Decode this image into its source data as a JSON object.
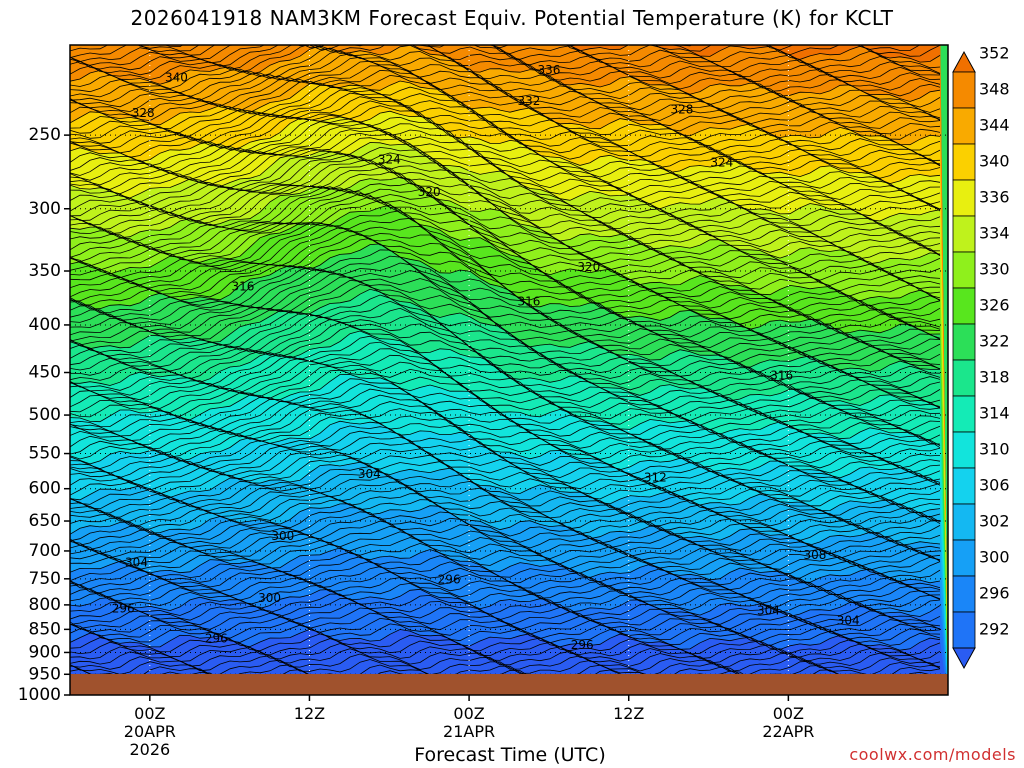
{
  "chart_data": {
    "type": "heatmap",
    "title": "2026041918 NAM3KM Forecast Equiv. Potential Temperature (K) for KCLT",
    "xlabel": "Forecast Time (UTC)",
    "ylabel": "",
    "y_scale": "log (pressure, reversed)",
    "ylim": [
      1000,
      200
    ],
    "y_ticks": [
      250,
      300,
      350,
      400,
      450,
      500,
      550,
      600,
      650,
      700,
      750,
      800,
      850,
      900,
      950,
      1000
    ],
    "x_range_hours": [
      -6,
      60
    ],
    "x_ticks": [
      {
        "hour": 0,
        "lines": [
          "00Z",
          "20APR",
          "2026"
        ]
      },
      {
        "hour": 12,
        "lines": [
          "12Z"
        ]
      },
      {
        "hour": 24,
        "lines": [
          "00Z",
          "21APR"
        ]
      },
      {
        "hour": 36,
        "lines": [
          "12Z"
        ]
      },
      {
        "hour": 48,
        "lines": [
          "00Z",
          "22APR"
        ]
      }
    ],
    "grid": true,
    "colorbar": {
      "levels": [
        292,
        296,
        300,
        302,
        306,
        310,
        314,
        318,
        322,
        326,
        330,
        334,
        336,
        340,
        344,
        348,
        352
      ],
      "colors": [
        "#2a5cf2",
        "#1f74f7",
        "#1a86f8",
        "#16a0f6",
        "#14b8f2",
        "#14d2ee",
        "#12e4dc",
        "#14ebb6",
        "#1be68c",
        "#2cdf58",
        "#58e61e",
        "#8ff01c",
        "#bff21c",
        "#e8ef10",
        "#fbd000",
        "#f9aa00",
        "#f58a00",
        "#f07000"
      ]
    },
    "contour_labels": [
      {
        "hour": 2,
        "p": 217,
        "text": "340"
      },
      {
        "hour": -0.5,
        "p": 237,
        "text": "328"
      },
      {
        "hour": 30,
        "p": 213,
        "text": "336"
      },
      {
        "hour": 28.5,
        "p": 230,
        "text": "332"
      },
      {
        "hour": 40,
        "p": 235,
        "text": "328"
      },
      {
        "hour": 18,
        "p": 266,
        "text": "324"
      },
      {
        "hour": 43,
        "p": 268,
        "text": "324"
      },
      {
        "hour": 21,
        "p": 288,
        "text": "320"
      },
      {
        "hour": 7,
        "p": 364,
        "text": "316"
      },
      {
        "hour": 33,
        "p": 347,
        "text": "320"
      },
      {
        "hour": 28.5,
        "p": 378,
        "text": "316"
      },
      {
        "hour": 47.5,
        "p": 454,
        "text": "316"
      },
      {
        "hour": 16.5,
        "p": 579,
        "text": "304"
      },
      {
        "hour": 38,
        "p": 584,
        "text": "312"
      },
      {
        "hour": 10,
        "p": 675,
        "text": "300"
      },
      {
        "hour": 50,
        "p": 708,
        "text": "308"
      },
      {
        "hour": -1,
        "p": 721,
        "text": "304"
      },
      {
        "hour": 22.5,
        "p": 752,
        "text": "296"
      },
      {
        "hour": 9,
        "p": 787,
        "text": "300"
      },
      {
        "hour": -2,
        "p": 808,
        "text": "296"
      },
      {
        "hour": 46.5,
        "p": 812,
        "text": "304"
      },
      {
        "hour": 52.5,
        "p": 833,
        "text": "304"
      },
      {
        "hour": 5,
        "p": 870,
        "text": "296"
      },
      {
        "hour": 32.5,
        "p": 885,
        "text": "296"
      }
    ]
  },
  "credit": "coolwx.com/models"
}
